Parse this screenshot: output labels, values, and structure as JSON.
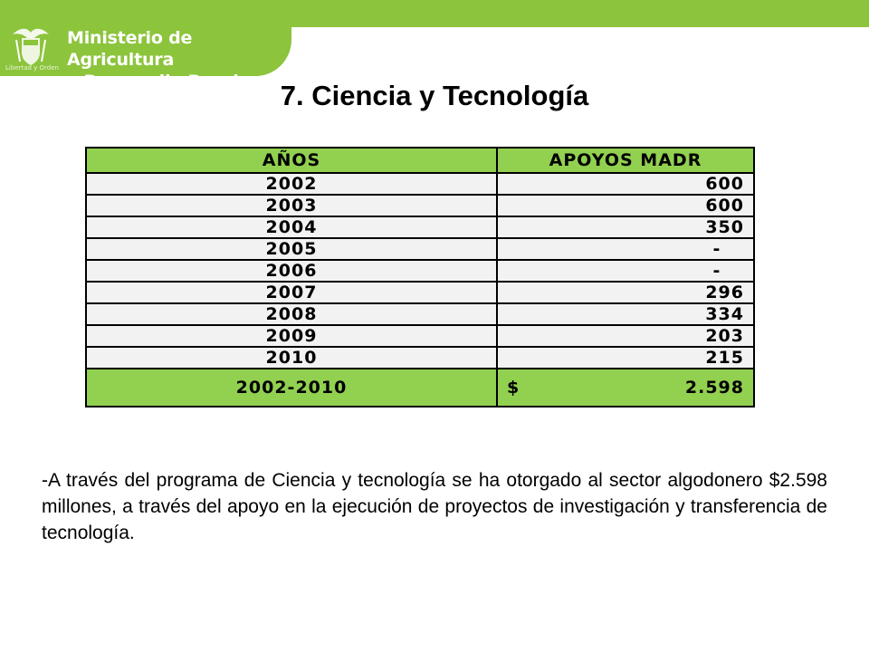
{
  "header": {
    "ministry_line1": "Ministerio de Agricultura",
    "ministry_line2": "y Desarrollo Rural",
    "motto": "Libertad y Orden"
  },
  "slide": {
    "title": "7. Ciencia y Tecnología"
  },
  "table": {
    "headers": [
      "AÑOS",
      "APOYOS MADR"
    ],
    "rows": [
      {
        "year": "2002",
        "value": "600"
      },
      {
        "year": "2003",
        "value": "600"
      },
      {
        "year": "2004",
        "value": "350"
      },
      {
        "year": "2005",
        "value": "-"
      },
      {
        "year": "2006",
        "value": "-"
      },
      {
        "year": "2007",
        "value": "296"
      },
      {
        "year": "2008",
        "value": "334"
      },
      {
        "year": "2009",
        "value": "203"
      },
      {
        "year": "2010",
        "value": "215"
      }
    ],
    "total": {
      "label": "2002-2010",
      "currency": "$",
      "value": "2.598"
    }
  },
  "body": {
    "paragraph": "-A través del programa de Ciencia y tecnología se ha otorgado al sector algodonero $2.598 millones, a través del apoyo en la ejecución de proyectos de investigación y transferencia de tecnología."
  },
  "colors": {
    "brand_green": "#8cc43c",
    "table_green": "#92d050",
    "row_gray": "#f2f2f2"
  },
  "icons": {
    "logo": "coat-of-arms-icon"
  }
}
